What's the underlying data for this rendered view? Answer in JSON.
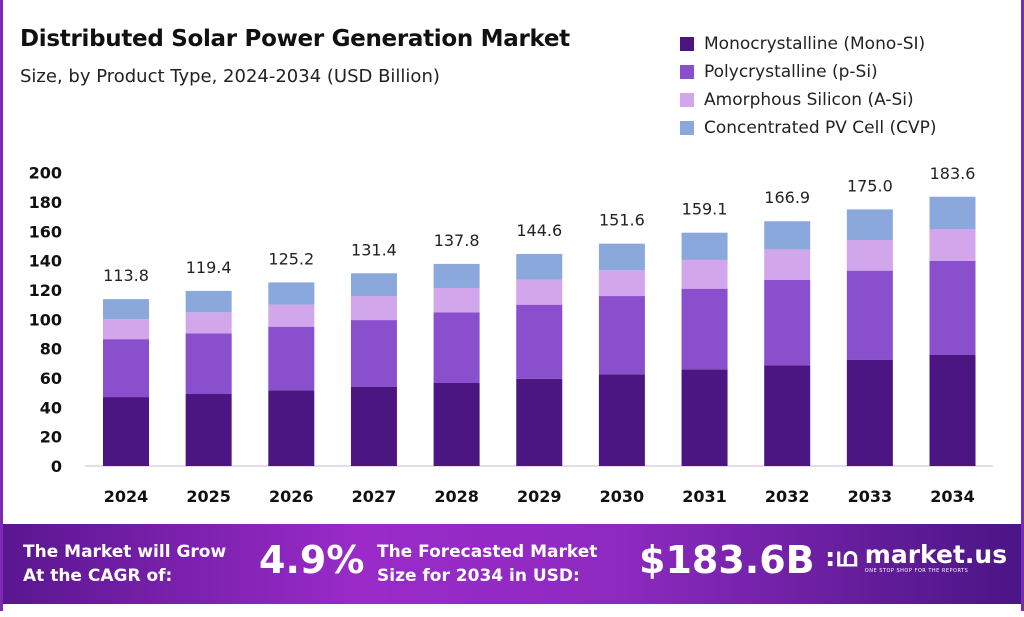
{
  "chart_data": {
    "type": "bar",
    "stacked": true,
    "title": "Distributed Solar Power Generation Market",
    "subtitle": "Size, by Product Type, 2024-2034 (USD Billion)",
    "categories": [
      "2024",
      "2025",
      "2026",
      "2027",
      "2028",
      "2029",
      "2030",
      "2031",
      "2032",
      "2033",
      "2034"
    ],
    "series": [
      {
        "name": "Monocrystalline (Mono-SI)",
        "color": "#4b1582",
        "values": [
          47.0,
          49.1,
          51.6,
          54.1,
          56.6,
          59.5,
          62.5,
          65.9,
          68.6,
          72.3,
          75.7
        ]
      },
      {
        "name": "Polycrystalline (p-Si)",
        "color": "#8a4fcc",
        "values": [
          39.5,
          41.4,
          43.4,
          45.4,
          48.2,
          50.5,
          53.4,
          55.0,
          58.4,
          60.9,
          64.1
        ]
      },
      {
        "name": "Amorphous Silicon (A-Si)",
        "color": "#d1a6ea",
        "values": [
          13.6,
          14.3,
          15.0,
          16.4,
          16.6,
          17.0,
          17.7,
          19.6,
          20.7,
          20.9,
          21.8
        ]
      },
      {
        "name": "Concentrated PV Cell (CVP)",
        "color": "#8aa8dc",
        "values": [
          13.7,
          14.6,
          15.2,
          15.5,
          16.4,
          17.6,
          18.0,
          18.6,
          19.2,
          20.9,
          22.0
        ]
      }
    ],
    "totals": [
      "113.8",
      "119.4",
      "125.2",
      "131.4",
      "137.8",
      "144.6",
      "151.6",
      "159.1",
      "166.9",
      "175.0",
      "183.6"
    ],
    "ylim": [
      0,
      200
    ],
    "yticks": [
      "0",
      "20",
      "40",
      "60",
      "80",
      "100",
      "120",
      "140",
      "160",
      "180",
      "200"
    ],
    "grid": false,
    "legend_position": "top-right"
  },
  "footer": {
    "cagr_label_1": "The Market will Grow",
    "cagr_label_2": "At the CAGR of:",
    "cagr_value": "4.9%",
    "forecast_label_1": "The Forecasted Market",
    "forecast_label_2": "Size for 2034 in USD:",
    "forecast_value": "$183.6B",
    "logo_name": "market.us",
    "logo_tagline": "ONE STOP SHOP FOR THE REPORTS"
  }
}
